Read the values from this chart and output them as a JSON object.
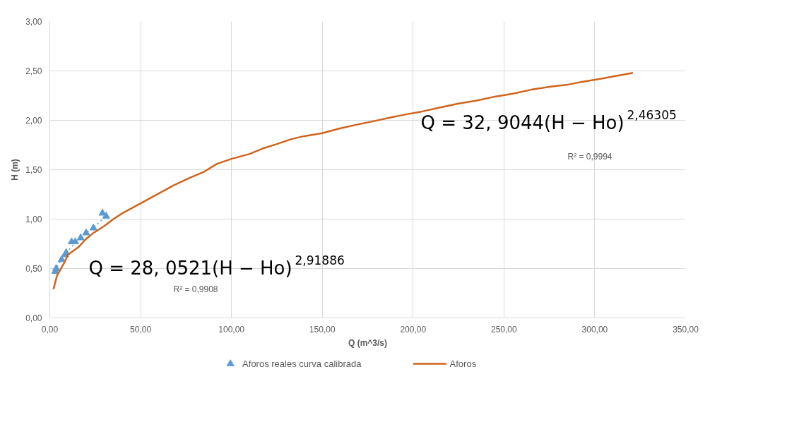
{
  "chart_data": {
    "type": "scatter",
    "xlabel": "Q (m^3/s)",
    "ylabel": "H (m)",
    "xlim": [
      0,
      350
    ],
    "ylim": [
      0,
      3
    ],
    "xticks": [
      {
        "value": 0,
        "label": "0,00"
      },
      {
        "value": 50,
        "label": "50,00"
      },
      {
        "value": 100,
        "label": "100,00"
      },
      {
        "value": 150,
        "label": "150,00"
      },
      {
        "value": 200,
        "label": "200,00"
      },
      {
        "value": 250,
        "label": "250,00"
      },
      {
        "value": 300,
        "label": "300,00"
      },
      {
        "value": 350,
        "label": "350,00"
      }
    ],
    "yticks": [
      {
        "value": 0,
        "label": "0,00"
      },
      {
        "value": 0.5,
        "label": "0,50"
      },
      {
        "value": 1,
        "label": "1,00"
      },
      {
        "value": 1.5,
        "label": "1,50"
      },
      {
        "value": 2,
        "label": "2,00"
      },
      {
        "value": 2.5,
        "label": "2,50"
      },
      {
        "value": 3,
        "label": "3,00"
      }
    ],
    "grid": true,
    "legend": "bottom",
    "series": [
      {
        "name": "Aforos reales curva calibrada",
        "marker": "triangle",
        "color": "#5b9bd5",
        "x": [
          3,
          3.5,
          6.5,
          8.5,
          9,
          12,
          14,
          17,
          20,
          24,
          29,
          31
        ],
        "values": [
          0.47,
          0.5,
          0.59,
          0.64,
          0.66,
          0.77,
          0.77,
          0.81,
          0.86,
          0.91,
          1.06,
          1.03
        ]
      },
      {
        "type": "line",
        "line_style": "dotted",
        "color": "#5b9bd5",
        "x": [
          3,
          8,
          14,
          20,
          25,
          31
        ],
        "values": [
          0.48,
          0.64,
          0.76,
          0.86,
          0.93,
          1.03
        ]
      },
      {
        "name": "Aforos",
        "type": "line",
        "line_style": "solid",
        "color": "#d0641c",
        "x": [
          2,
          4,
          8,
          10,
          16,
          20,
          24,
          30,
          35,
          40,
          45,
          52,
          60,
          68,
          76,
          85,
          92,
          100,
          110,
          118,
          125,
          133,
          140,
          150,
          160,
          170,
          178,
          188,
          196,
          205,
          215,
          225,
          235,
          245,
          255,
          265,
          275,
          285,
          293,
          303,
          321
        ],
        "values": [
          0.29,
          0.43,
          0.56,
          0.64,
          0.72,
          0.8,
          0.86,
          0.93,
          1.0,
          1.06,
          1.11,
          1.18,
          1.26,
          1.34,
          1.41,
          1.48,
          1.56,
          1.61,
          1.66,
          1.72,
          1.76,
          1.81,
          1.84,
          1.87,
          1.92,
          1.96,
          1.99,
          2.03,
          2.06,
          2.09,
          2.13,
          2.17,
          2.2,
          2.24,
          2.27,
          2.31,
          2.34,
          2.36,
          2.39,
          2.42,
          2.48
        ]
      }
    ],
    "annotations": [
      "Q = 28, 0521(H − Ho)$^{2,91886}$",
      "R² = 0,9908",
      "Q = 32, 9044(H − Ho)$^{2,46305}$",
      "R² = 0,9994"
    ]
  }
}
